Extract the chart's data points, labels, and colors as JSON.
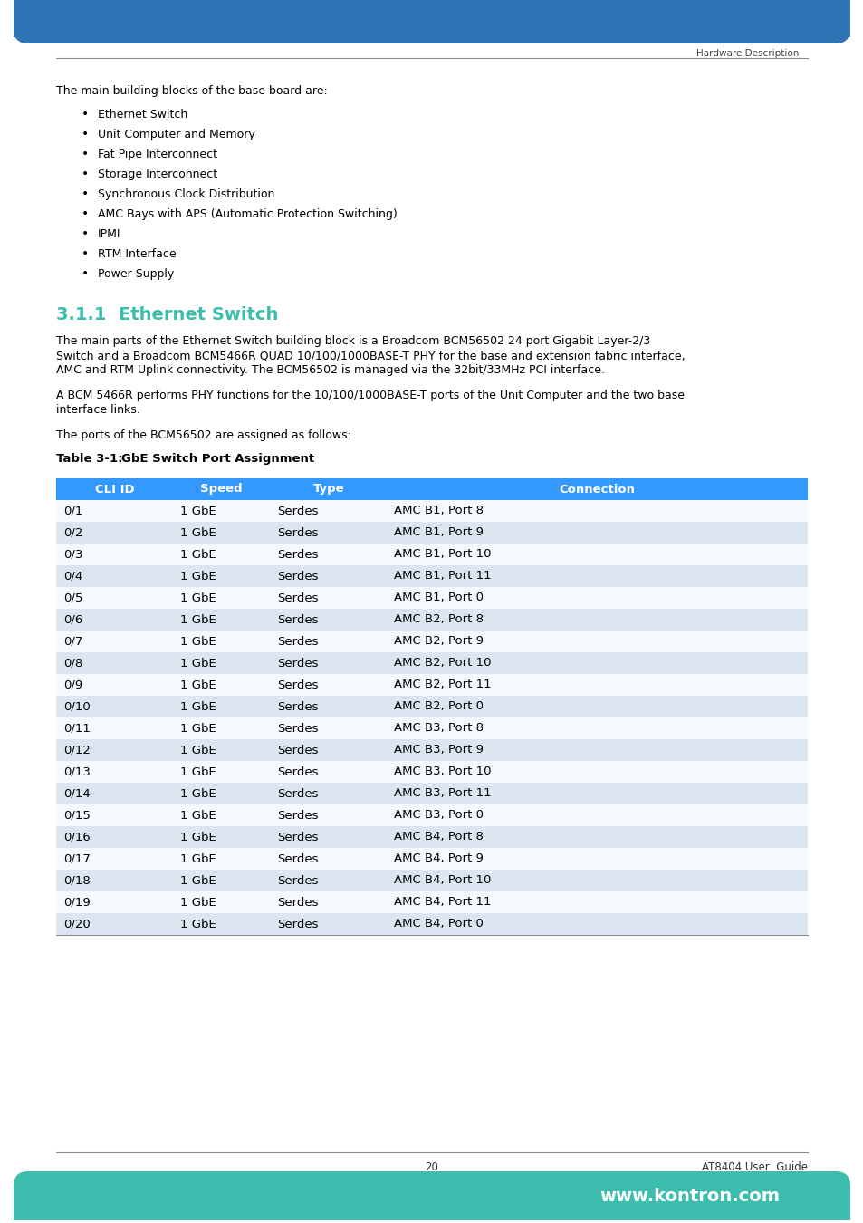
{
  "header_color": "#2e75b6",
  "footer_color": "#3dbdad",
  "page_bg": "#ffffff",
  "section_label": "Hardware Description",
  "page_number": "20",
  "footer_url": "www.kontron.com",
  "manual_title": "AT8404 User  Guide",
  "intro_text": "The main building blocks of the base board are:",
  "bullets": [
    "Ethernet Switch",
    "Unit Computer and Memory",
    "Fat Pipe Interconnect",
    "Storage Interconnect",
    "Synchronous Clock Distribution",
    "AMC Bays with APS (Automatic Protection Switching)",
    "IPMI",
    "RTM Interface",
    "Power Supply"
  ],
  "section_num": "3.1.1",
  "section_title": "  Ethernet Switch",
  "section_title_color": "#3dbdad",
  "para1_lines": [
    "The main parts of the Ethernet Switch building block is a Broadcom BCM56502 24 port Gigabit Layer-2/3",
    "Switch and a Broadcom BCM5466R QUAD 10/100/1000BASE-T PHY for the base and extension fabric interface,",
    "AMC and RTM Uplink connectivity. The BCM56502 is managed via the 32bit/33MHz PCI interface."
  ],
  "para2_lines": [
    "A BCM 5466R performs PHY functions for the 10/100/1000BASE-T ports of the Unit Computer and the two base",
    "interface links."
  ],
  "para3": "The ports of the BCM56502 are assigned as follows:",
  "table_label": "Table 3-1:",
  "table_title": "GbE Switch Port Assignment",
  "table_header": [
    "CLI ID",
    "Speed",
    "Type",
    "Connection"
  ],
  "table_header_bg": "#3399ff",
  "table_header_fg": "#ffffff",
  "table_row_bg_odd": "#dce6f1",
  "table_row_bg_even": "#f5f8fd",
  "table_rows": [
    [
      "0/1",
      "1 GbE",
      "Serdes",
      "AMC B1, Port 8"
    ],
    [
      "0/2",
      "1 GbE",
      "Serdes",
      "AMC B1, Port 9"
    ],
    [
      "0/3",
      "1 GbE",
      "Serdes",
      "AMC B1, Port 10"
    ],
    [
      "0/4",
      "1 GbE",
      "Serdes",
      "AMC B1, Port 11"
    ],
    [
      "0/5",
      "1 GbE",
      "Serdes",
      "AMC B1, Port 0"
    ],
    [
      "0/6",
      "1 GbE",
      "Serdes",
      "AMC B2, Port 8"
    ],
    [
      "0/7",
      "1 GbE",
      "Serdes",
      "AMC B2, Port 9"
    ],
    [
      "0/8",
      "1 GbE",
      "Serdes",
      "AMC B2, Port 10"
    ],
    [
      "0/9",
      "1 GbE",
      "Serdes",
      "AMC B2, Port 11"
    ],
    [
      "0/10",
      "1 GbE",
      "Serdes",
      "AMC B2, Port 0"
    ],
    [
      "0/11",
      "1 GbE",
      "Serdes",
      "AMC B3, Port 8"
    ],
    [
      "0/12",
      "1 GbE",
      "Serdes",
      "AMC B3, Port 9"
    ],
    [
      "0/13",
      "1 GbE",
      "Serdes",
      "AMC B3, Port 10"
    ],
    [
      "0/14",
      "1 GbE",
      "Serdes",
      "AMC B3, Port 11"
    ],
    [
      "0/15",
      "1 GbE",
      "Serdes",
      "AMC B3, Port 0"
    ],
    [
      "0/16",
      "1 GbE",
      "Serdes",
      "AMC B4, Port 8"
    ],
    [
      "0/17",
      "1 GbE",
      "Serdes",
      "AMC B4, Port 9"
    ],
    [
      "0/18",
      "1 GbE",
      "Serdes",
      "AMC B4, Port 10"
    ],
    [
      "0/19",
      "1 GbE",
      "Serdes",
      "AMC B4, Port 11"
    ],
    [
      "0/20",
      "1 GbE",
      "Serdes",
      "AMC B4, Port 0"
    ]
  ],
  "text_color": "#000000",
  "body_fontsize": 9.0,
  "bullet_fontsize": 9.0,
  "table_fontsize": 9.5
}
